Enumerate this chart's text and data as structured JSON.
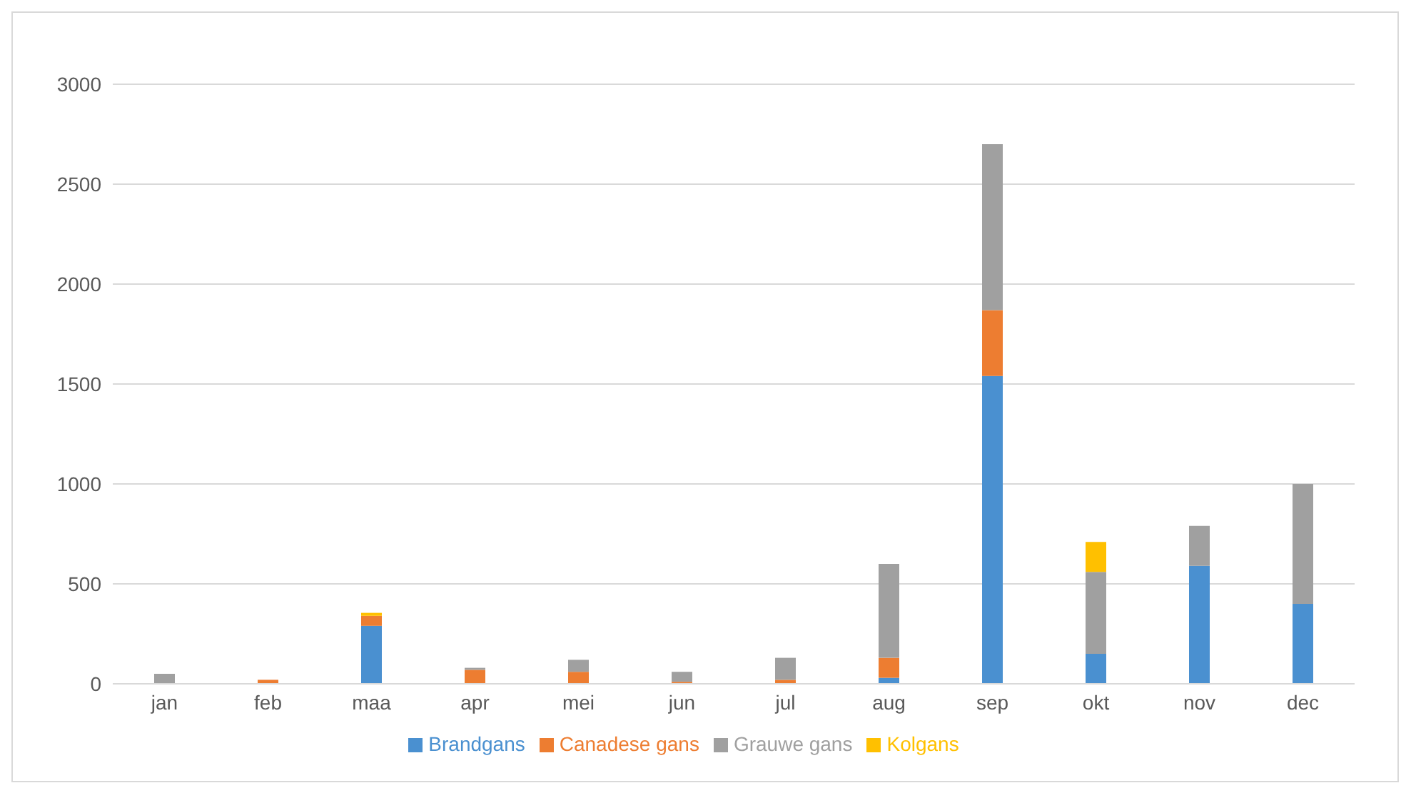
{
  "chart_data": {
    "type": "bar",
    "stacked": true,
    "categories": [
      "jan",
      "feb",
      "maa",
      "apr",
      "mei",
      "jun",
      "jul",
      "aug",
      "sep",
      "okt",
      "nov",
      "dec"
    ],
    "series": [
      {
        "name": "Brandgans",
        "color": "#4a90d0",
        "values": [
          0,
          0,
          290,
          0,
          0,
          0,
          0,
          30,
          1540,
          150,
          590,
          400
        ]
      },
      {
        "name": "Canadese gans",
        "color": "#ed7d31",
        "values": [
          0,
          20,
          50,
          70,
          60,
          10,
          20,
          100,
          330,
          0,
          0,
          0
        ]
      },
      {
        "name": "Grauwe gans",
        "color": "#a0a0a0",
        "values": [
          50,
          0,
          0,
          10,
          60,
          50,
          110,
          470,
          830,
          410,
          200,
          600
        ]
      },
      {
        "name": "Kolgans",
        "color": "#ffc000",
        "values": [
          0,
          0,
          15,
          0,
          0,
          0,
          0,
          0,
          0,
          150,
          0,
          0
        ]
      }
    ],
    "ylim": [
      0,
      3000
    ],
    "yticks": [
      0,
      500,
      1000,
      1500,
      2000,
      2500,
      3000
    ],
    "grid": "y",
    "legend": "bottom"
  }
}
